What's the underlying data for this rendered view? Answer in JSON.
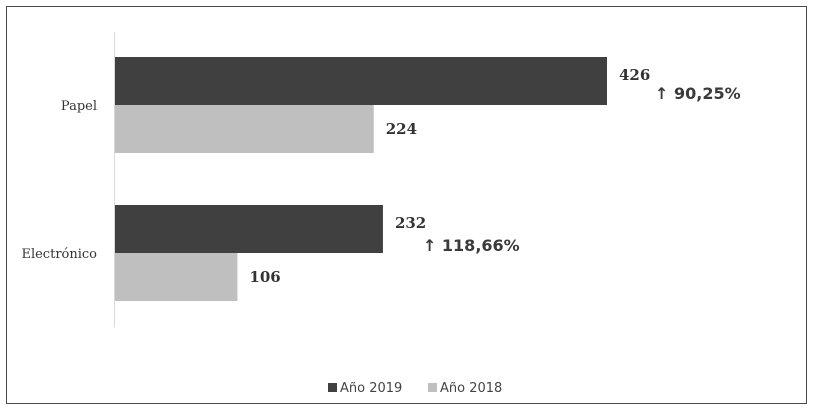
{
  "chart_data": {
    "type": "bar",
    "orientation": "horizontal",
    "categories": [
      "Papel",
      "Electrónico"
    ],
    "series": [
      {
        "name": "Año 2019",
        "values": [
          426,
          232
        ],
        "color": "#404040"
      },
      {
        "name": "Año 2018",
        "values": [
          224,
          106
        ],
        "color": "#bfbfbf"
      }
    ],
    "annotations": [
      {
        "category": "Papel",
        "text": "↑ 90,25%"
      },
      {
        "category": "Electrónico",
        "text": "↑ 118,66%"
      }
    ],
    "xlim": [
      0,
      440
    ],
    "grid": false,
    "legend": "bottom-center"
  }
}
